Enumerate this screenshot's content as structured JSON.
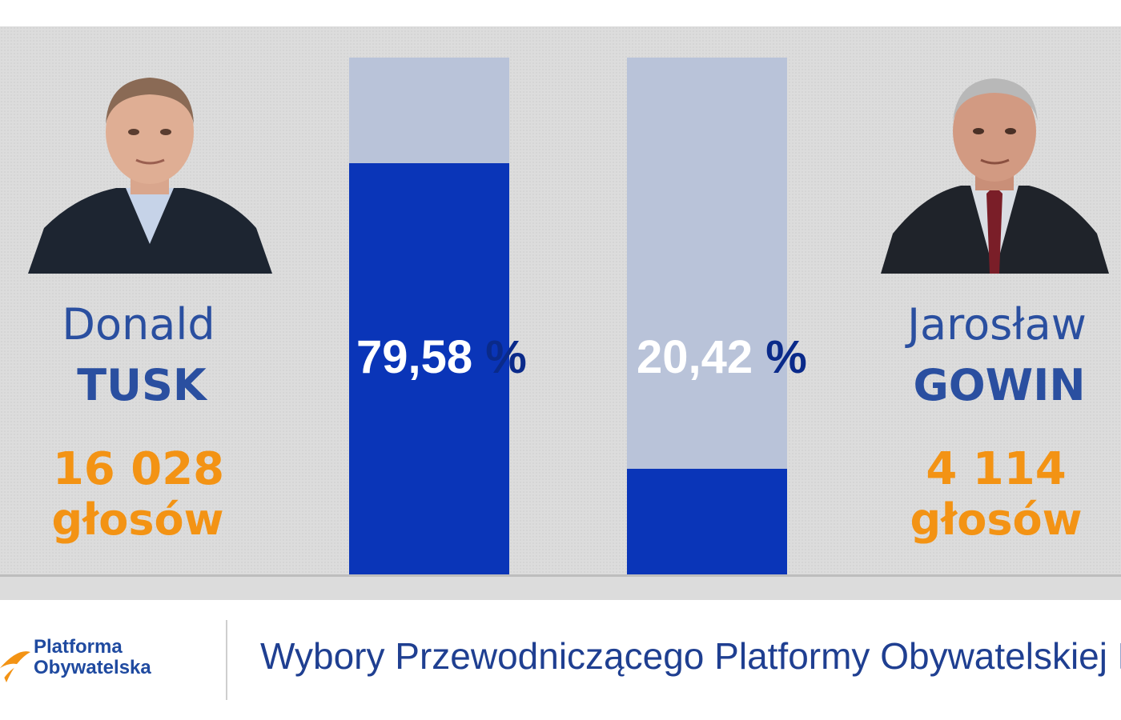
{
  "colors": {
    "background": "#dcdcdc",
    "name": "#2a4fa0",
    "votes": "#f39314",
    "bar_fill": "#0a35b8",
    "bar_track": "#b9c3d9",
    "footer_title": "#1f3f91"
  },
  "candidates": [
    {
      "first_name": "Donald",
      "last_name": "TUSK",
      "votes_text": "16 028",
      "votes_label": "głosów",
      "photo": "candidate-portrait"
    },
    {
      "first_name": "Jarosław",
      "last_name": "GOWIN",
      "votes_text": "4 114",
      "votes_label": "głosów",
      "photo": "candidate-portrait"
    }
  ],
  "chart_data": {
    "type": "bar",
    "categories": [
      "TUSK",
      "GOWIN"
    ],
    "values": [
      79.58,
      20.42
    ],
    "value_labels": [
      "79,58",
      "20,42"
    ],
    "unit": "%",
    "ylim": [
      0,
      100
    ],
    "grid": false
  },
  "footer": {
    "logo_line1": "Platforma",
    "logo_line2": "Obywatelska",
    "title": "Wybory Przewodniczącego Platformy Obywatelskiej RP"
  }
}
